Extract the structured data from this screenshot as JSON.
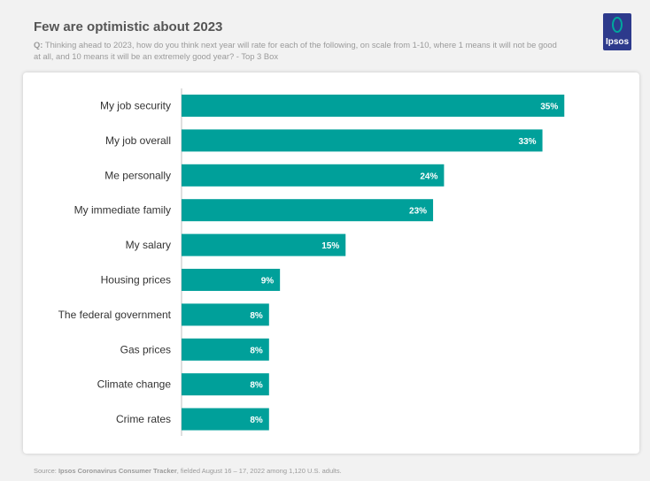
{
  "header": {
    "title": "Few are optimistic about 2023",
    "question_prefix": "Q:",
    "question_text": "Thinking ahead to 2023, how do you think next year will rate for each of the following, on scale from 1-10, where 1 means it will not be good at all, and 10 means it will be an extremely good year? - Top 3 Box"
  },
  "logo": {
    "text": "Ipsos",
    "color": "#2d3a8c",
    "accent": "#00a79d"
  },
  "footer": {
    "source_prefix": "Source:",
    "source_name": "Ipsos Coronavirus Consumer Tracker",
    "source_rest": ", fielded August 16 – 17, 2022 among 1,120 U.S. adults."
  },
  "chart_data": {
    "type": "bar",
    "orientation": "horizontal",
    "categories": [
      "My job security",
      "My job overall",
      "Me personally",
      "My immediate family",
      "My salary",
      "Housing prices",
      "The federal government",
      "Gas prices",
      "Climate change",
      "Crime rates"
    ],
    "values": [
      35,
      33,
      24,
      23,
      15,
      9,
      8,
      8,
      8,
      8
    ],
    "value_labels": [
      "35%",
      "33%",
      "24%",
      "23%",
      "15%",
      "9%",
      "8%",
      "8%",
      "8%",
      "8%"
    ],
    "unit": "%",
    "xlim": [
      0,
      40
    ],
    "bar_color": "#00a09a",
    "grid": false,
    "legend": "none"
  }
}
